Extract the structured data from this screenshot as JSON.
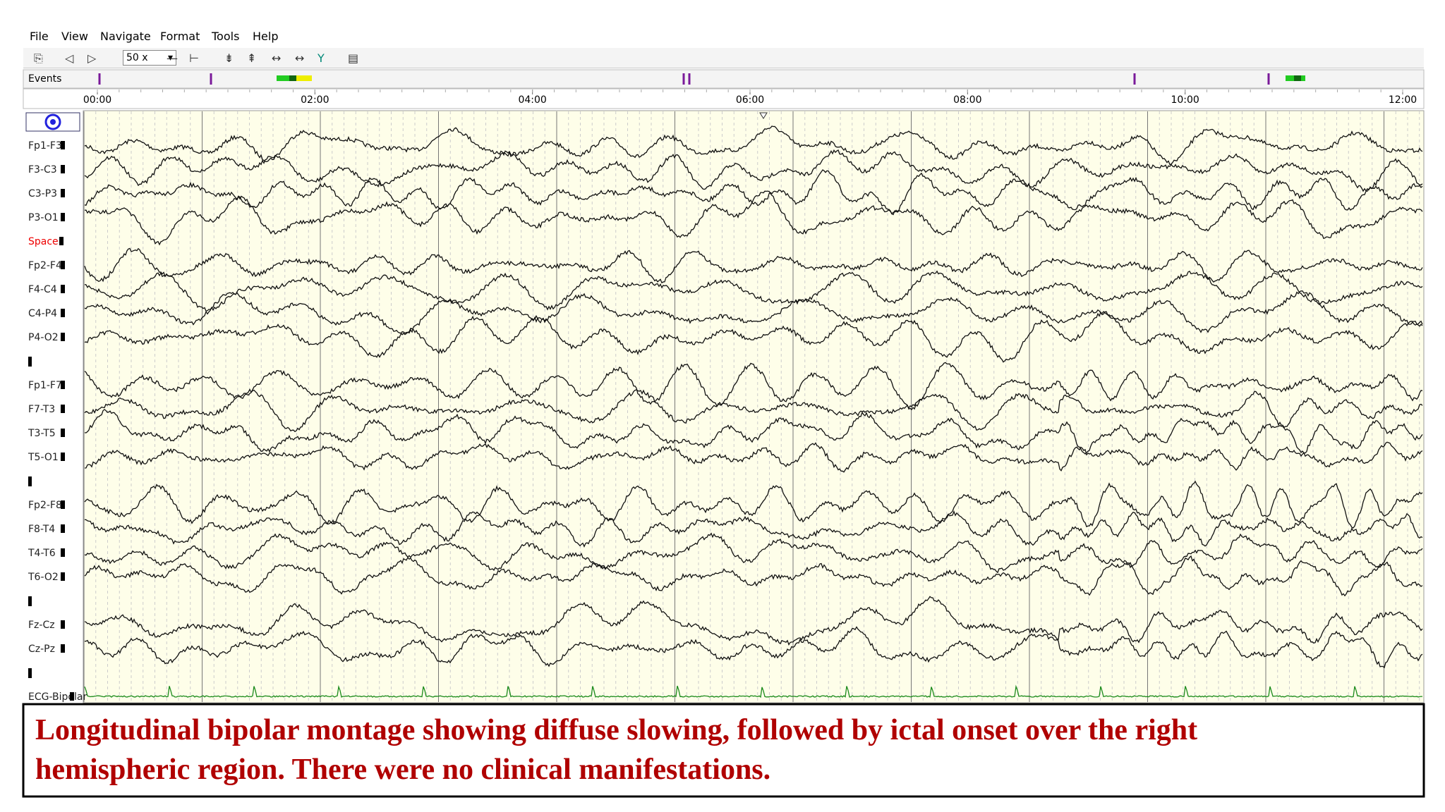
{
  "menu": [
    "File",
    "View",
    "Navigate",
    "Format",
    "Tools",
    "Help"
  ],
  "toolbar": {
    "zoom": "50 x"
  },
  "events": {
    "label": "Events"
  },
  "timeline": {
    "ticks": [
      "00:00",
      "02:00",
      "04:00",
      "06:00",
      "08:00",
      "10:00",
      "12:00"
    ]
  },
  "channels": [
    "Fp1-F3",
    "F3-C3",
    "C3-P3",
    "P3-O1",
    "Space",
    "Fp2-F4",
    "F4-C4",
    "C4-P4",
    "P4-O2",
    null,
    "Fp1-F7",
    "F7-T3",
    "T3-T5",
    "T5-O1",
    null,
    "Fp2-F8",
    "F8-T4",
    "T4-T6",
    "T6-O2",
    null,
    "Fz-Cz",
    "Cz-Pz",
    null,
    "ECG-Bipolar"
  ],
  "caption": {
    "lines": [
      "Longitudinal bipolar montage showing diffuse slowing, followed by ictal onset over the right",
      "hemispheric region. There were no clinical manifestations."
    ]
  }
}
